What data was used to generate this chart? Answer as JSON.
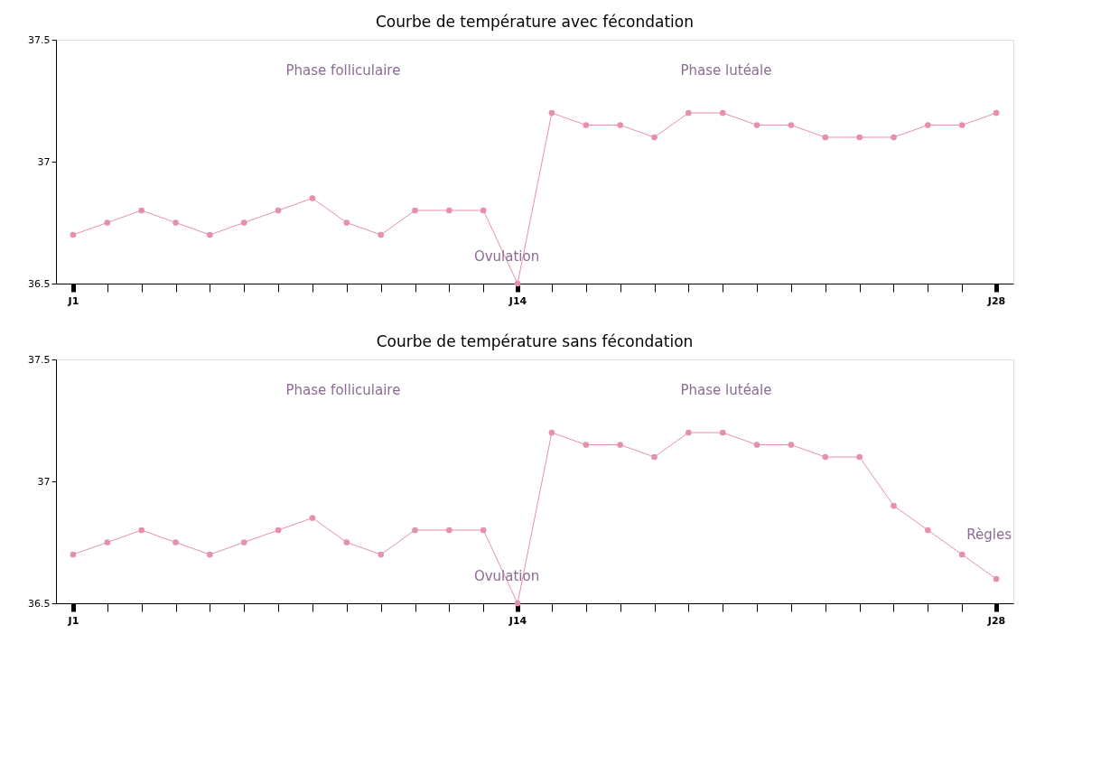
{
  "chart_data": [
    {
      "type": "line",
      "title": "Courbe de température avec fécondation",
      "categories": [
        "J1",
        null,
        null,
        null,
        null,
        null,
        null,
        null,
        null,
        null,
        null,
        null,
        null,
        "J14",
        null,
        null,
        null,
        null,
        null,
        null,
        null,
        null,
        null,
        null,
        null,
        null,
        null,
        "J28"
      ],
      "series": [
        {
          "color": "#e591ab",
          "values": [
            36.7,
            36.75,
            36.8,
            36.75,
            36.7,
            36.75,
            36.8,
            36.85,
            36.75,
            36.7,
            36.8,
            36.8,
            36.8,
            36.5,
            37.2,
            37.15,
            37.15,
            37.1,
            37.2,
            37.2,
            37.15,
            37.15,
            37.1,
            37.1,
            37.1,
            37.15,
            37.15,
            37.2
          ]
        }
      ],
      "ylim": [
        36.5,
        37.5
      ],
      "yticks": [
        36.5,
        37,
        37.5
      ],
      "grid": false,
      "legend": false,
      "marker": "circle",
      "line_style": "solid",
      "annotations": [
        "Phase folliculaire",
        "Phase lutéale",
        {
          "text": "Ovulation",
          "x": "J14",
          "y": 36.5
        }
      ]
    },
    {
      "type": "line",
      "title": "Courbe de température sans fécondation",
      "categories": [
        "J1",
        null,
        null,
        null,
        null,
        null,
        null,
        null,
        null,
        null,
        null,
        null,
        null,
        "J14",
        null,
        null,
        null,
        null,
        null,
        null,
        null,
        null,
        null,
        null,
        null,
        null,
        null,
        "J28"
      ],
      "series": [
        {
          "color": "#e591ab",
          "values": [
            36.7,
            36.75,
            36.8,
            36.75,
            36.7,
            36.75,
            36.8,
            36.85,
            36.75,
            36.7,
            36.8,
            36.8,
            36.8,
            36.5,
            37.2,
            37.15,
            37.15,
            37.1,
            37.2,
            37.2,
            37.15,
            37.15,
            37.1,
            37.1,
            36.9,
            36.8,
            36.7,
            36.6
          ]
        }
      ],
      "ylim": [
        36.5,
        37.5
      ],
      "yticks": [
        36.5,
        37,
        37.5
      ],
      "grid": false,
      "legend": false,
      "marker": "circle",
      "line_style": "solid",
      "annotations": [
        "Phase folliculaire",
        "Phase lutéale",
        {
          "text": "Ovulation",
          "x": "J14",
          "y": 36.5
        },
        "Règles"
      ]
    }
  ]
}
